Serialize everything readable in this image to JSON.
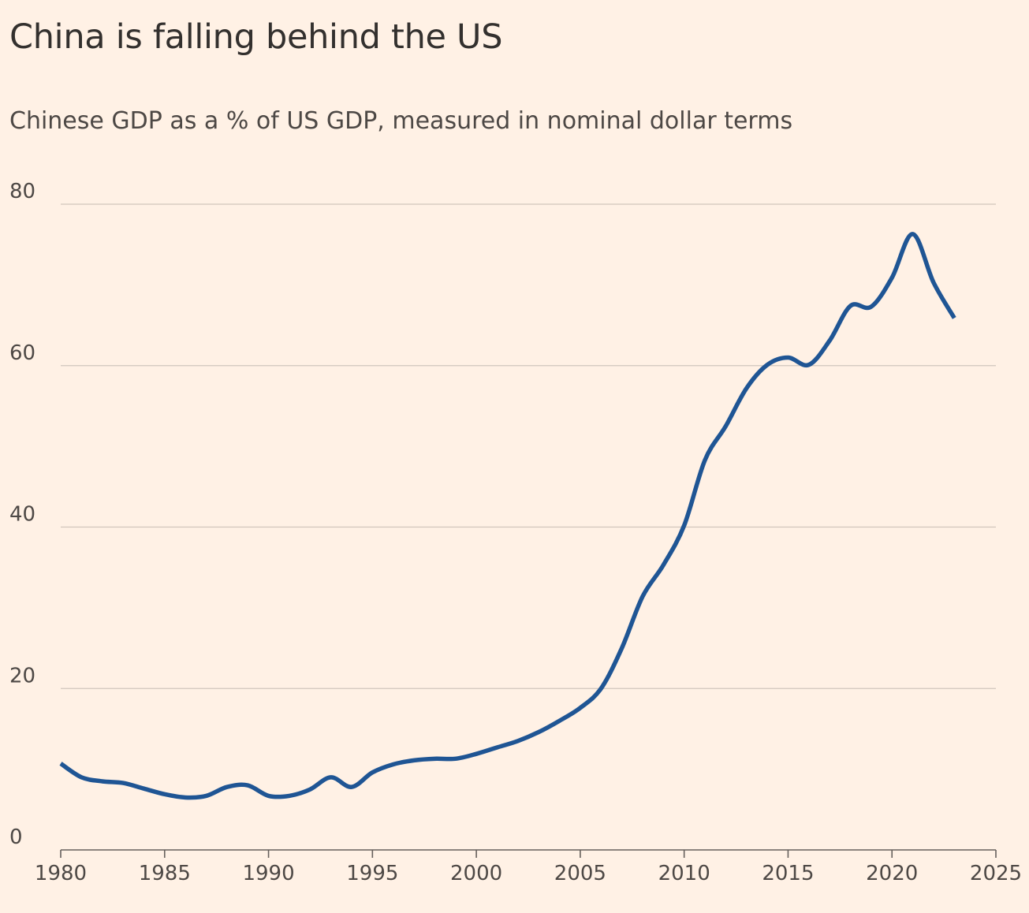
{
  "chart_data": {
    "type": "line",
    "title": "China is falling behind the US",
    "subtitle": "Chinese GDP as a % of US GDP, measured in nominal dollar terms",
    "xlabel": "",
    "ylabel": "",
    "xlim": [
      1980,
      2025
    ],
    "ylim": [
      0,
      80
    ],
    "x_ticks": [
      "1980",
      "1985",
      "1990",
      "1995",
      "2000",
      "2005",
      "2010",
      "2015",
      "2020",
      "2025"
    ],
    "y_ticks": [
      "0",
      "20",
      "40",
      "60",
      "80"
    ],
    "grid": "horizontal",
    "legend": "none",
    "series": [
      {
        "color": "#1f5594",
        "x": [
          1980,
          1981,
          1982,
          1983,
          1984,
          1985,
          1986,
          1987,
          1988,
          1989,
          1990,
          1991,
          1992,
          1993,
          1994,
          1995,
          1996,
          1997,
          1998,
          1999,
          2000,
          2001,
          2002,
          2003,
          2004,
          2005,
          2006,
          2007,
          2008,
          2009,
          2010,
          2011,
          2012,
          2013,
          2014,
          2015,
          2016,
          2017,
          2018,
          2019,
          2020,
          2021,
          2022,
          2023
        ],
        "values": [
          10.7,
          9.0,
          8.5,
          8.3,
          7.6,
          6.9,
          6.5,
          6.7,
          7.8,
          8.0,
          6.7,
          6.7,
          7.5,
          9.0,
          7.8,
          9.6,
          10.6,
          11.1,
          11.3,
          11.3,
          11.9,
          12.7,
          13.5,
          14.6,
          16.0,
          17.6,
          20.0,
          25.0,
          31.4,
          35.3,
          40.2,
          48.3,
          52.5,
          57.2,
          60.1,
          61.0,
          60.1,
          63.1,
          67.4,
          67.3,
          70.9,
          76.3,
          70.3,
          65.9
        ]
      }
    ]
  }
}
